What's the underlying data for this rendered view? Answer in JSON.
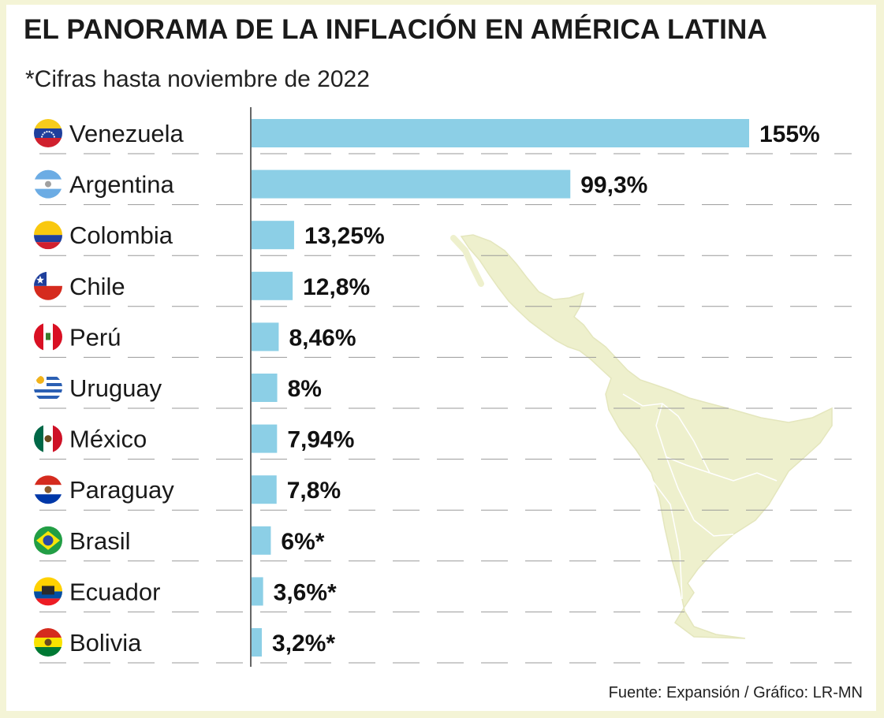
{
  "title": "EL PANORAMA DE LA INFLACIÓN EN AMÉRICA LATINA",
  "subtitle": "*Cifras hasta noviembre de 2022",
  "source": "Fuente: Expansión / Gráfico: LR-MN",
  "colors": {
    "bar": "#8ccfe6",
    "map": "#eef0cd",
    "map_border": "#ffffff",
    "gridline": "#9a9a9a",
    "axis": "#333333",
    "frame": "#f4f4d6"
  },
  "chart_data": {
    "type": "bar",
    "orientation": "horizontal",
    "categories": [
      "Venezuela",
      "Argentina",
      "Colombia",
      "Chile",
      "Perú",
      "Uruguay",
      "México",
      "Paraguay",
      "Brasil",
      "Ecuador",
      "Bolivia"
    ],
    "values": [
      155,
      99.3,
      13.25,
      12.8,
      8.46,
      8,
      7.94,
      7.8,
      6,
      3.6,
      3.2
    ],
    "value_labels": [
      "155%",
      "99,3%",
      "13,25%",
      "12,8%",
      "8,46%",
      "8%",
      "7,94%",
      "7,8%",
      "6%*",
      "3,6%*",
      "3,2%*"
    ],
    "flag_icons": [
      "venezuela-flag-icon",
      "argentina-flag-icon",
      "colombia-flag-icon",
      "chile-flag-icon",
      "peru-flag-icon",
      "uruguay-flag-icon",
      "mexico-flag-icon",
      "paraguay-flag-icon",
      "brasil-flag-icon",
      "ecuador-flag-icon",
      "bolivia-flag-icon"
    ],
    "xlim": [
      0,
      155
    ],
    "grid": "dashed horizontal separators",
    "background": "map of Latin America"
  }
}
